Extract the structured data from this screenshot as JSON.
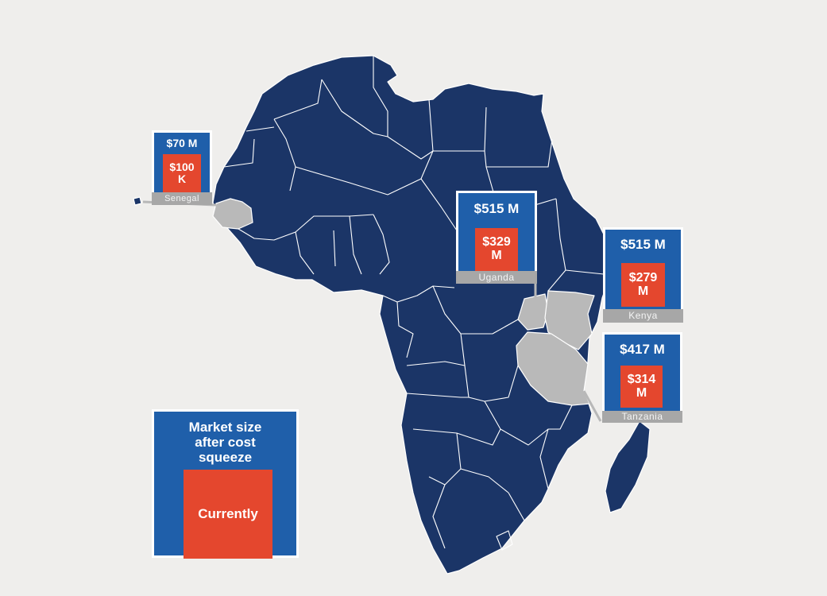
{
  "map": {
    "region": "Africa",
    "colors": {
      "land": "#1b3567",
      "highlight": "#b9b9b9",
      "callout": "#1f5faa",
      "current": "#e4472e",
      "background": "#efeeec"
    },
    "callouts": [
      {
        "country": "Senegal",
        "market_after_cost_squeeze": "$70 M",
        "currently": "$100\nK"
      },
      {
        "country": "Uganda",
        "market_after_cost_squeeze": "$515 M",
        "currently": "$329\nM"
      },
      {
        "country": "Kenya",
        "market_after_cost_squeeze": "$515 M",
        "currently": "$279\nM"
      },
      {
        "country": "Tanzania",
        "market_after_cost_squeeze": "$417 M",
        "currently": "$314\nM"
      }
    ]
  },
  "legend": {
    "outer_label": "Market size\nafter cost\nsqueeze",
    "inner_label": "Currently"
  }
}
